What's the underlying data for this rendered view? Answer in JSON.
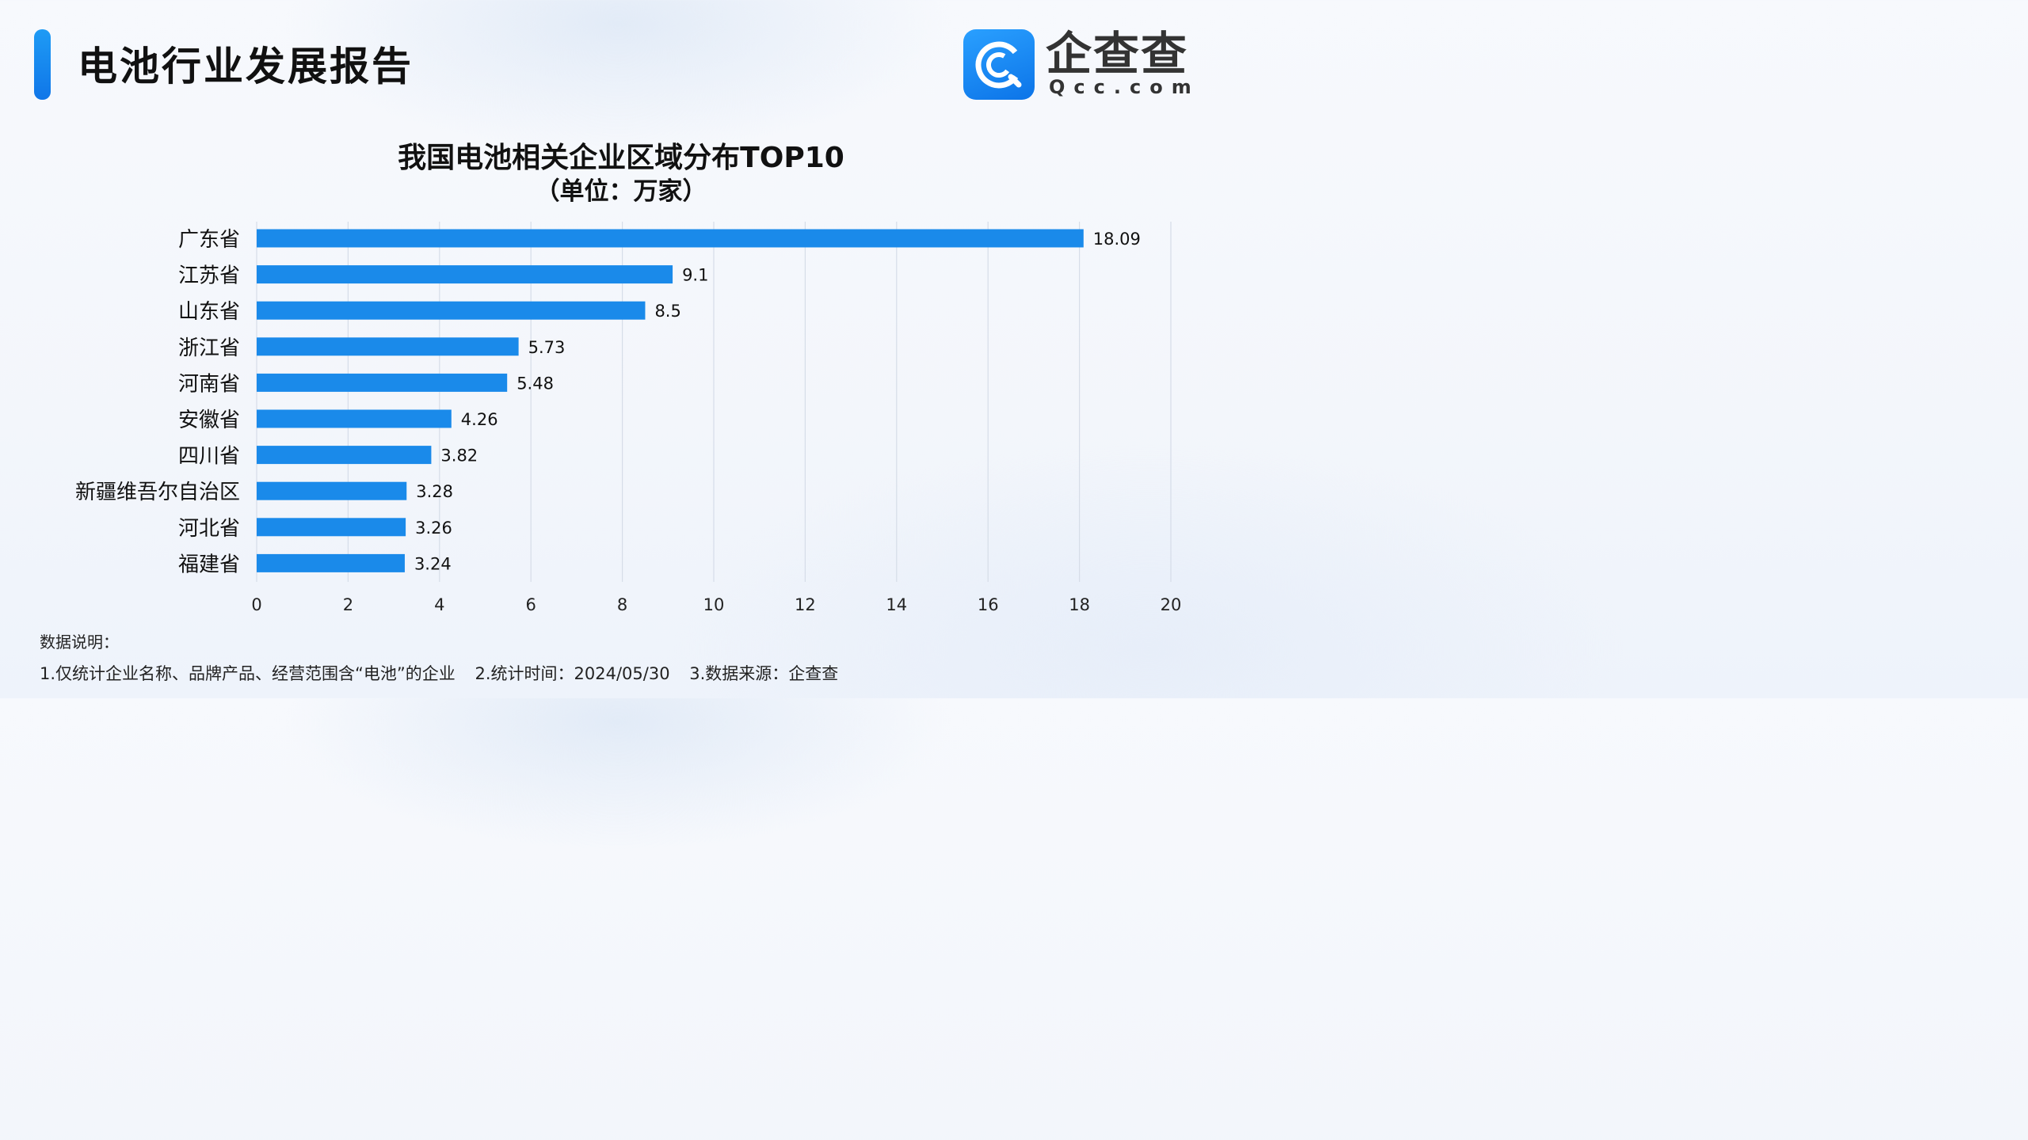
{
  "header": {
    "title": "电池行业发展报告",
    "logo_name": "企查查",
    "logo_domain": "Qcc.com",
    "logo_icon": "qcc-logo-icon"
  },
  "colors": {
    "bar": "#1a8aea",
    "accent": "#1a88f0",
    "grid": "#d6dde8"
  },
  "chart_data": {
    "type": "bar",
    "orientation": "horizontal",
    "title": "我国电池相关企业区域分布TOP10",
    "subtitle": "（单位：万家）",
    "categories": [
      "广东省",
      "江苏省",
      "山东省",
      "浙江省",
      "河南省",
      "安徽省",
      "四川省",
      "新疆维吾尔自治区",
      "河北省",
      "福建省"
    ],
    "values": [
      18.09,
      9.1,
      8.5,
      5.73,
      5.48,
      4.26,
      3.82,
      3.28,
      3.26,
      3.24
    ],
    "value_labels": [
      "18.09",
      "9.1",
      "8.5",
      "5.73",
      "5.48",
      "4.26",
      "3.82",
      "3.28",
      "3.26",
      "3.24"
    ],
    "xlim": [
      0,
      20
    ],
    "xticks": [
      "0",
      "2",
      "4",
      "6",
      "8",
      "10",
      "12",
      "14",
      "16",
      "18",
      "20"
    ],
    "grid": "vertical",
    "legend": "none"
  },
  "notes": {
    "label": "数据说明：",
    "items": [
      "1.仅统计企业名称、品牌产品、经营范围含“电池”的企业",
      "2.统计时间：2024/05/30",
      "3.数据来源：企查查"
    ]
  }
}
